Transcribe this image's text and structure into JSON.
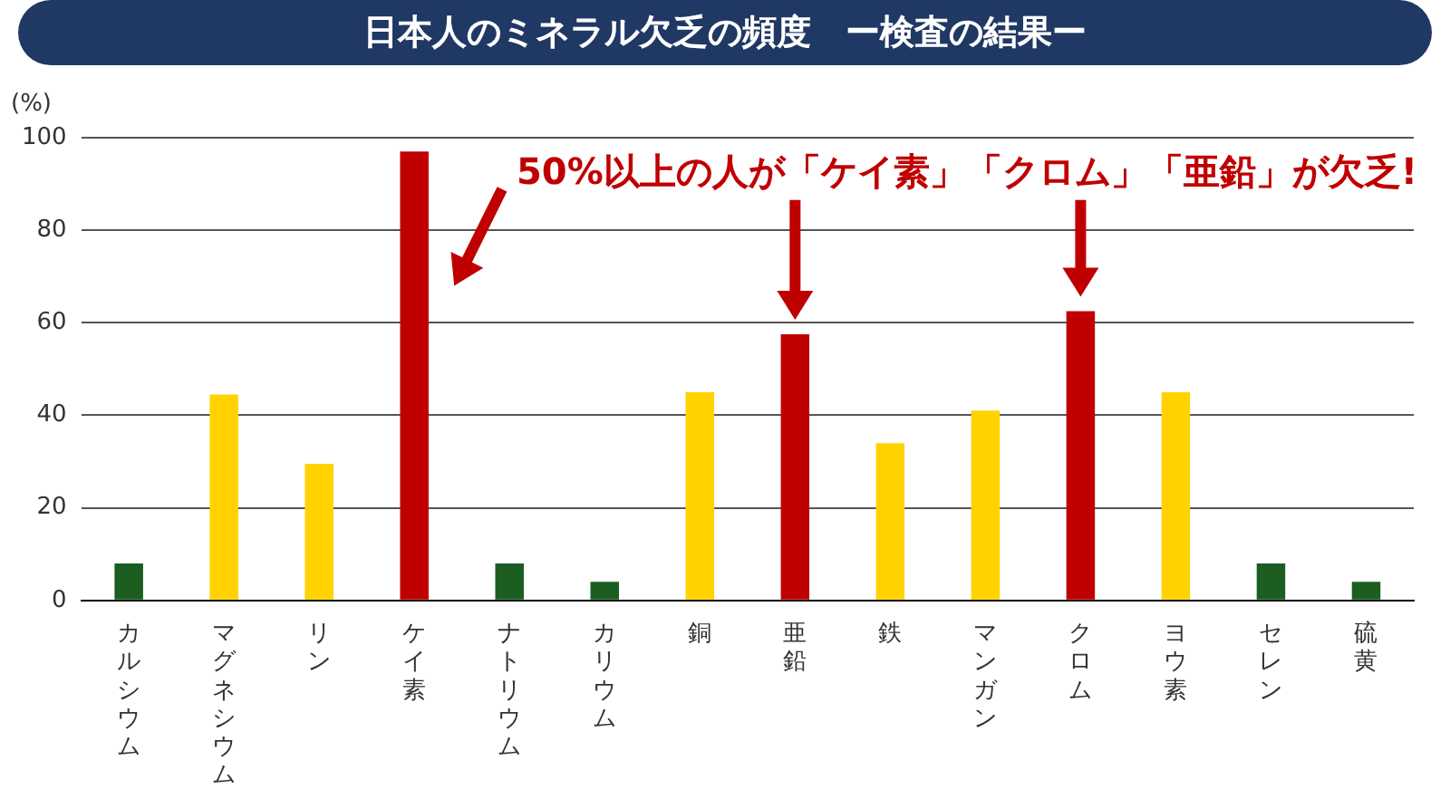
{
  "chart_data": {
    "type": "bar",
    "title": "日本人のミネラル欠乏の頻度　ー検査の結果ー",
    "ylabel": "(%)",
    "categories": [
      "カルシウム",
      "マグネシウム",
      "リン",
      "ケイ素",
      "ナトリウム",
      "カリウム",
      "銅",
      "亜鉛",
      "鉄",
      "マンガン",
      "クロム",
      "ヨウ素",
      "セレン",
      "硫黄"
    ],
    "values": [
      8,
      44.5,
      29.5,
      97,
      8,
      4,
      45,
      57.5,
      34,
      41,
      62.5,
      45,
      8,
      4
    ],
    "colors": [
      "#1b5e20",
      "#ffd200",
      "#ffd200",
      "#c00000",
      "#1b5e20",
      "#1b5e20",
      "#ffd200",
      "#c00000",
      "#ffd200",
      "#ffd200",
      "#c00000",
      "#ffd200",
      "#1b5e20",
      "#1b5e20"
    ],
    "ylim": [
      0,
      100
    ],
    "yticks": [
      0,
      20,
      40,
      60,
      80,
      100
    ],
    "grid": "y",
    "legend": false,
    "annotations": [
      "50%以上の人が「ケイ素」「クロム」「亜鉛」が欠乏!"
    ]
  }
}
